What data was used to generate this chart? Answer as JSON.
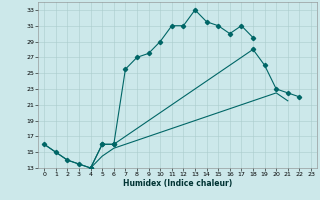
{
  "xlabel": "Humidex (Indice chaleur)",
  "bg_color": "#cce8ea",
  "grid_color": "#aacccc",
  "line_color": "#006666",
  "xlim": [
    -0.5,
    23.5
  ],
  "ylim": [
    13,
    34
  ],
  "xticks": [
    0,
    1,
    2,
    3,
    4,
    5,
    6,
    7,
    8,
    9,
    10,
    11,
    12,
    13,
    14,
    15,
    16,
    17,
    18,
    19,
    20,
    21,
    22,
    23
  ],
  "yticks": [
    13,
    15,
    17,
    19,
    21,
    23,
    25,
    27,
    29,
    31,
    33
  ],
  "curve1_x": [
    0,
    1,
    2,
    3,
    4,
    5,
    6,
    7,
    8,
    9,
    10,
    11,
    12,
    13,
    14,
    15,
    16,
    17,
    18
  ],
  "curve1_y": [
    16,
    15,
    14,
    13.5,
    13,
    16,
    16,
    25.5,
    27,
    27.5,
    29,
    31,
    31,
    33,
    31.5,
    31,
    30,
    31,
    29.5
  ],
  "curve2_x": [
    4,
    5,
    6,
    18,
    19,
    20,
    21,
    22
  ],
  "curve2_y": [
    13,
    16,
    16,
    28,
    26,
    23,
    22.5,
    22
  ],
  "curve3_x": [
    0,
    1,
    2,
    3,
    4,
    5,
    6,
    7,
    8,
    9,
    10,
    11,
    12,
    13,
    14,
    15,
    16,
    17,
    18,
    19,
    20,
    21
  ],
  "curve3_y": [
    16,
    15,
    14,
    13.5,
    13,
    14.5,
    15.5,
    16,
    16.5,
    17,
    17.5,
    18,
    18.5,
    19,
    19.5,
    20,
    20.5,
    21,
    21.5,
    22,
    22.5,
    21.5
  ]
}
